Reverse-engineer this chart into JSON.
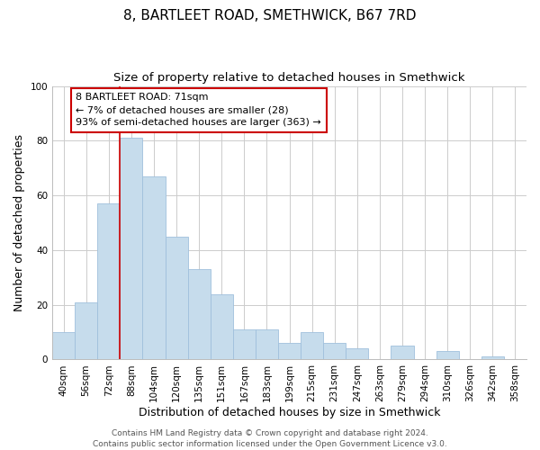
{
  "title": "8, BARTLEET ROAD, SMETHWICK, B67 7RD",
  "subtitle": "Size of property relative to detached houses in Smethwick",
  "xlabel": "Distribution of detached houses by size in Smethwick",
  "ylabel": "Number of detached properties",
  "bar_labels": [
    "40sqm",
    "56sqm",
    "72sqm",
    "88sqm",
    "104sqm",
    "120sqm",
    "135sqm",
    "151sqm",
    "167sqm",
    "183sqm",
    "199sqm",
    "215sqm",
    "231sqm",
    "247sqm",
    "263sqm",
    "279sqm",
    "294sqm",
    "310sqm",
    "326sqm",
    "342sqm",
    "358sqm"
  ],
  "bar_values": [
    10,
    21,
    57,
    81,
    67,
    45,
    33,
    24,
    11,
    11,
    6,
    10,
    6,
    4,
    0,
    5,
    0,
    3,
    0,
    1,
    0
  ],
  "bar_color": "#c6dcec",
  "bar_edge_color": "#a0c0dc",
  "vline_x_index": 2.5,
  "vline_color": "#cc0000",
  "annotation_text": "8 BARTLEET ROAD: 71sqm\n← 7% of detached houses are smaller (28)\n93% of semi-detached houses are larger (363) →",
  "annotation_box_color": "#ffffff",
  "annotation_box_edge_color": "#cc0000",
  "ylim": [
    0,
    100
  ],
  "footer_line1": "Contains HM Land Registry data © Crown copyright and database right 2024.",
  "footer_line2": "Contains public sector information licensed under the Open Government Licence v3.0.",
  "background_color": "#ffffff",
  "grid_color": "#cccccc",
  "title_fontsize": 11,
  "subtitle_fontsize": 9.5,
  "axis_label_fontsize": 9,
  "tick_fontsize": 7.5,
  "annotation_fontsize": 8,
  "footer_fontsize": 6.5
}
